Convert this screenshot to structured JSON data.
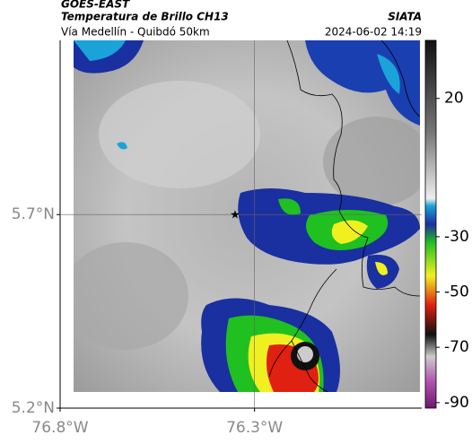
{
  "header": {
    "source": "GOES-EAST",
    "title": "Temperatura de Brillo CH13",
    "brand": "SIATA",
    "route": "Vía Medellín - Quibdó 50km",
    "datetime": "2024-06-02 14:19"
  },
  "map": {
    "xlim": [
      -76.8,
      -75.87
    ],
    "ylim": [
      5.2,
      6.15
    ],
    "xticks": [
      {
        "value": -76.8,
        "label": "76.8°W"
      },
      {
        "value": -76.3,
        "label": "76.3°W"
      }
    ],
    "yticks": [
      {
        "value": 5.2,
        "label": "5.2°N"
      },
      {
        "value": 5.7,
        "label": "5.7°N"
      }
    ],
    "crosshair": {
      "lon": -76.3,
      "lat": 5.7
    },
    "marker": {
      "lon": -76.35,
      "lat": 5.7
    }
  },
  "colorbar": {
    "clim": [
      41,
      -92
    ],
    "ticks": [
      20,
      -30,
      -50,
      -70,
      -90
    ]
  }
}
